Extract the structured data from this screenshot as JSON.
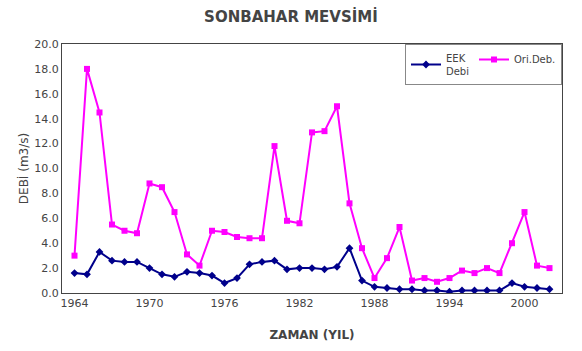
{
  "chart_data": {
    "type": "line",
    "title": "SONBAHAR MEVSİMİ",
    "x_label": "ZAMAN (YIL)",
    "y_label": "DEBİ (m3/s)",
    "x": [
      1964,
      1965,
      1966,
      1967,
      1968,
      1969,
      1970,
      1971,
      1972,
      1973,
      1974,
      1975,
      1976,
      1977,
      1978,
      1979,
      1980,
      1981,
      1982,
      1983,
      1984,
      1985,
      1986,
      1987,
      1988,
      1989,
      1990,
      1991,
      1992,
      1993,
      1994,
      1995,
      1996,
      1997,
      1998,
      1999,
      2000,
      2001,
      2002
    ],
    "series": [
      {
        "name": "EEK\nDebi",
        "color": "#00008B",
        "marker": "diamond",
        "values": [
          1.6,
          1.5,
          3.3,
          2.6,
          2.5,
          2.5,
          2.0,
          1.5,
          1.3,
          1.7,
          1.6,
          1.4,
          0.8,
          1.2,
          2.3,
          2.5,
          2.6,
          1.9,
          2.0,
          2.0,
          1.9,
          2.1,
          3.6,
          1.0,
          0.5,
          0.4,
          0.3,
          0.3,
          0.2,
          0.2,
          0.1,
          0.2,
          0.2,
          0.2,
          0.2,
          0.8,
          0.5,
          0.4,
          0.3
        ]
      },
      {
        "name": "Ori.Deb.",
        "color": "#FF00FF",
        "marker": "square",
        "values": [
          3.0,
          18.0,
          14.5,
          5.5,
          5.0,
          4.8,
          8.8,
          8.5,
          6.5,
          3.1,
          2.2,
          5.0,
          4.9,
          4.5,
          4.4,
          4.4,
          11.8,
          5.8,
          5.6,
          12.9,
          13.0,
          15.0,
          7.2,
          3.6,
          1.2,
          2.8,
          5.3,
          1.0,
          1.2,
          0.9,
          1.2,
          1.8,
          1.6,
          2.0,
          1.6,
          4.0,
          6.5,
          2.2,
          2.0
        ]
      }
    ],
    "xlim": [
      1963,
      2003
    ],
    "xticks": [
      1964,
      1970,
      1976,
      1982,
      1988,
      1994,
      2000
    ],
    "ylim": [
      0,
      20
    ],
    "yticks": [
      {
        "value": 0,
        "label": "0.0"
      },
      {
        "value": 2,
        "label": "2.0"
      },
      {
        "value": 4,
        "label": "4.0"
      },
      {
        "value": 6,
        "label": "6.0"
      },
      {
        "value": 8,
        "label": "8.0"
      },
      {
        "value": 10,
        "label": "10.0"
      },
      {
        "value": 12,
        "label": "12.0"
      },
      {
        "value": 14,
        "label": "14.0"
      },
      {
        "value": 16,
        "label": "16.0"
      },
      {
        "value": 18,
        "label": "18.0"
      },
      {
        "value": 20,
        "label": "20.0"
      }
    ],
    "grid": false,
    "legend": "upper right"
  }
}
